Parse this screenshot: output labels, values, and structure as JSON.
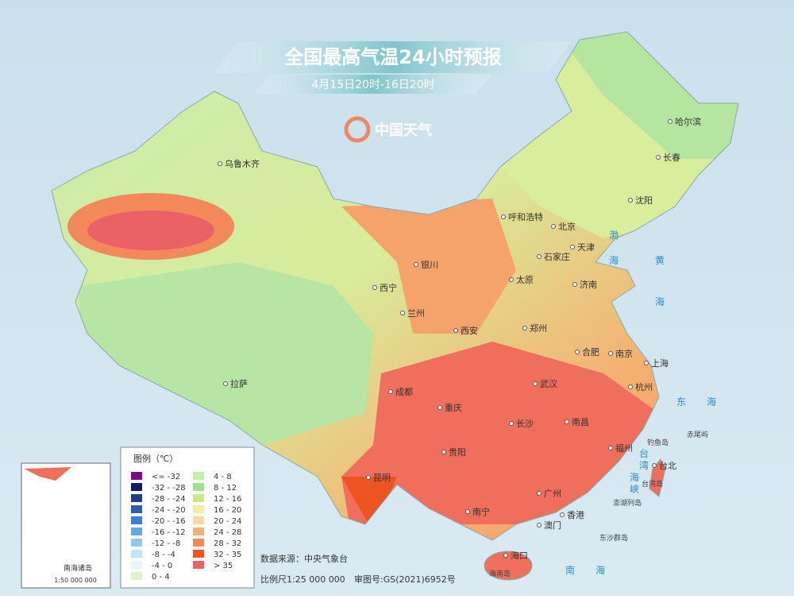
{
  "header": {
    "title": "全国最高气温24小时预报",
    "subtitle": "4月15日20时-16日20时",
    "logo": "中国天气"
  },
  "cities": [
    "乌鲁木齐",
    "哈尔滨",
    "长春",
    "沈阳",
    "呼和浩特",
    "北京",
    "天津",
    "石家庄",
    "太原",
    "济南",
    "银川",
    "西宁",
    "兰州",
    "西安",
    "郑州",
    "合肥",
    "南京",
    "上海",
    "拉萨",
    "成都",
    "武汉",
    "杭州",
    "重庆",
    "长沙",
    "南昌",
    "贵阳",
    "福州",
    "台北",
    "昆明",
    "广州",
    "南宁",
    "香港",
    "澳门",
    "海口"
  ],
  "seas": [
    "渤",
    "海",
    "黄",
    "海",
    "东",
    "海",
    "南",
    "海",
    "台",
    "湾",
    "海",
    "峡"
  ],
  "islands": [
    "钓鱼岛",
    "赤尾屿",
    "台湾岛",
    "澎湖列岛",
    "东沙群岛",
    "海南岛"
  ],
  "legend": {
    "title": "图例（℃）",
    "items": [
      {
        "label": "<= -32",
        "color": "#7b0a84"
      },
      {
        "label": "-32 - -28",
        "color": "#0d1a6e"
      },
      {
        "label": "-28 - -24",
        "color": "#1f3d8f"
      },
      {
        "label": "-24 - -20",
        "color": "#2a5cb0"
      },
      {
        "label": "-20 - -16",
        "color": "#3a7fd4"
      },
      {
        "label": "-16 - -12",
        "color": "#62a6e8"
      },
      {
        "label": "-12 - -8",
        "color": "#8ec9ee"
      },
      {
        "label": "-8 - -4",
        "color": "#bfe6f4"
      },
      {
        "label": "-4 - 0",
        "color": "#e8f6fa"
      },
      {
        "label": "0 - 4",
        "color": "#dff3c9"
      },
      {
        "label": "4 - 8",
        "color": "#c2efb0"
      },
      {
        "label": "8 - 12",
        "color": "#a2e08b"
      },
      {
        "label": "12 - 16",
        "color": "#cde884"
      },
      {
        "label": "16 - 20",
        "color": "#f2efa1"
      },
      {
        "label": "20 - 24",
        "color": "#f8d9a6"
      },
      {
        "label": "24 - 28",
        "color": "#f4b272"
      },
      {
        "label": "28 - 32",
        "color": "#f3895b"
      },
      {
        "label": "32 - 35",
        "color": "#ee5422"
      },
      {
        "label": "> 35",
        "color": "#ea6266"
      }
    ]
  },
  "footer": {
    "source": "数据来源：中央气象台",
    "scale": "比例尺1:25 000 000",
    "approval": "审图号:GS(2021)6952号"
  },
  "inset": {
    "label": "南海诸岛",
    "scale": "1:50 000 000"
  }
}
